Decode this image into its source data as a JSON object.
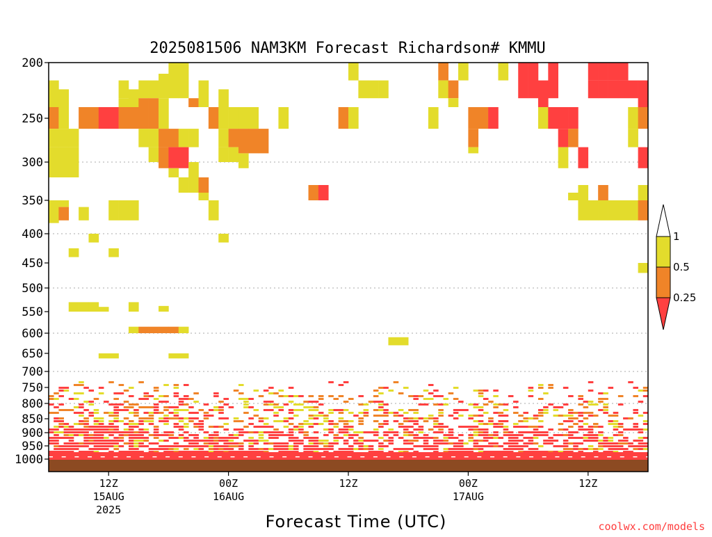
{
  "colors": {
    "yellow": "#e3dc2c",
    "orange": "#f08428",
    "red": "#ff4040",
    "ground": "#8c4a22",
    "grid": "#aaaaaa",
    "credit": "#ff3c3c"
  },
  "chart_data": {
    "type": "heatmap",
    "title": "2025081506 NAM3KM Forecast Richardson# KMMU",
    "xlabel": "Forecast Time (UTC)",
    "ylabel": "",
    "credit": "coolwx.com/models",
    "y_axis": {
      "scale": "pressure (hPa), inverted",
      "range": [
        1030,
        200
      ],
      "ticks": [
        200,
        250,
        300,
        350,
        400,
        450,
        500,
        550,
        600,
        650,
        700,
        750,
        800,
        850,
        900,
        950,
        1000
      ],
      "tick_labels": [
        "200",
        "250",
        "300",
        "350",
        "400",
        "450",
        "500",
        "550",
        "600",
        "650",
        "700",
        "750",
        "800",
        "850",
        "900",
        "950",
        "1000"
      ],
      "dotted_grid_at": [
        300,
        400,
        500,
        600,
        700,
        800,
        900,
        1000
      ]
    },
    "x_axis": {
      "range_hours": [
        0,
        60
      ],
      "ticks": [
        {
          "hour": 6,
          "label": "12Z",
          "date": "15AUG",
          "year": "2025"
        },
        {
          "hour": 18,
          "label": "00Z",
          "date": "16AUG",
          "year": ""
        },
        {
          "hour": 30,
          "label": "12Z",
          "date": "",
          "year": ""
        },
        {
          "hour": 42,
          "label": "00Z",
          "date": "17AUG",
          "year": ""
        },
        {
          "hour": 54,
          "label": "12Z",
          "date": "",
          "year": ""
        }
      ]
    },
    "colorbar": {
      "bins": [
        {
          "range": "< 0.25",
          "color": "#ff4040"
        },
        {
          "range": "0.25 - 0.5",
          "color": "#f08428"
        },
        {
          "range": "0.5 - 1",
          "color": "#e3dc2c"
        },
        {
          "range": "> 1",
          "color": "#ffffff"
        }
      ],
      "tick_labels": [
        "1",
        "0.5",
        "0.25"
      ]
    },
    "cells": [
      [
        0,
        1,
        216,
        240,
        "Y"
      ],
      [
        0,
        1,
        240,
        262,
        "O"
      ],
      [
        0,
        1,
        262,
        283,
        "Y"
      ],
      [
        0,
        1,
        283,
        320,
        "Y"
      ],
      [
        0,
        1,
        350,
        384,
        "Y"
      ],
      [
        1,
        2,
        224,
        240,
        "Y"
      ],
      [
        1,
        2,
        240,
        262,
        "Y"
      ],
      [
        1,
        2,
        262,
        283,
        "Y"
      ],
      [
        1,
        2,
        283,
        320,
        "Y"
      ],
      [
        1,
        2,
        350,
        360,
        "Y"
      ],
      [
        1,
        2,
        360,
        380,
        "O"
      ],
      [
        2,
        3,
        262,
        283,
        "Y"
      ],
      [
        2,
        3,
        283,
        320,
        "Y"
      ],
      [
        2,
        3,
        425,
        440,
        "Y"
      ],
      [
        2,
        3,
        530,
        550,
        "Y"
      ],
      [
        3,
        4,
        240,
        262,
        "O"
      ],
      [
        3,
        4,
        360,
        380,
        "Y"
      ],
      [
        3,
        4,
        530,
        550,
        "Y"
      ],
      [
        4,
        5,
        240,
        262,
        "O"
      ],
      [
        4,
        5,
        400,
        415,
        "Y"
      ],
      [
        4,
        5,
        530,
        550,
        "Y"
      ],
      [
        5,
        6,
        240,
        262,
        "R"
      ],
      [
        5,
        6,
        540,
        550,
        "Y"
      ],
      [
        5,
        6,
        650,
        664,
        "Y"
      ],
      [
        6,
        7,
        240,
        262,
        "R"
      ],
      [
        6,
        7,
        350,
        380,
        "Y"
      ],
      [
        6,
        7,
        650,
        664,
        "Y"
      ],
      [
        6,
        7,
        425,
        440,
        "Y"
      ],
      [
        7,
        8,
        216,
        232,
        "Y"
      ],
      [
        7,
        8,
        232,
        240,
        "Y"
      ],
      [
        7,
        8,
        240,
        262,
        "O"
      ],
      [
        7,
        8,
        350,
        380,
        "Y"
      ],
      [
        8,
        9,
        224,
        240,
        "Y"
      ],
      [
        8,
        9,
        240,
        262,
        "O"
      ],
      [
        8,
        9,
        350,
        380,
        "Y"
      ],
      [
        8,
        9,
        530,
        550,
        "Y"
      ],
      [
        8,
        9,
        585,
        600,
        "Y"
      ],
      [
        9,
        10,
        216,
        232,
        "Y"
      ],
      [
        9,
        10,
        232,
        262,
        "O"
      ],
      [
        9,
        10,
        262,
        283,
        "Y"
      ],
      [
        9,
        10,
        585,
        600,
        "O"
      ],
      [
        10,
        11,
        216,
        232,
        "Y"
      ],
      [
        10,
        11,
        232,
        262,
        "O"
      ],
      [
        10,
        11,
        262,
        283,
        "Y"
      ],
      [
        10,
        11,
        283,
        300,
        "Y"
      ],
      [
        10,
        11,
        585,
        600,
        "O"
      ],
      [
        11,
        12,
        210,
        232,
        "Y"
      ],
      [
        11,
        12,
        232,
        262,
        "Y"
      ],
      [
        11,
        12,
        262,
        283,
        "O"
      ],
      [
        11,
        12,
        283,
        308,
        "O"
      ],
      [
        11,
        12,
        538,
        550,
        "Y"
      ],
      [
        11,
        12,
        585,
        600,
        "O"
      ],
      [
        12,
        13,
        200,
        232,
        "Y"
      ],
      [
        12,
        13,
        262,
        283,
        "O"
      ],
      [
        12,
        13,
        283,
        308,
        "R"
      ],
      [
        12,
        13,
        308,
        320,
        "Y"
      ],
      [
        12,
        13,
        585,
        600,
        "O"
      ],
      [
        12,
        13,
        650,
        664,
        "Y"
      ],
      [
        13,
        14,
        200,
        232,
        "Y"
      ],
      [
        13,
        14,
        262,
        283,
        "Y"
      ],
      [
        13,
        14,
        283,
        308,
        "R"
      ],
      [
        13,
        14,
        320,
        340,
        "Y"
      ],
      [
        13,
        14,
        585,
        600,
        "Y"
      ],
      [
        13,
        14,
        650,
        664,
        "Y"
      ],
      [
        14,
        15,
        232,
        240,
        "O"
      ],
      [
        14,
        15,
        262,
        283,
        "Y"
      ],
      [
        14,
        15,
        300,
        320,
        "Y"
      ],
      [
        14,
        15,
        320,
        340,
        "Y"
      ],
      [
        15,
        16,
        216,
        240,
        "Y"
      ],
      [
        15,
        16,
        320,
        340,
        "O"
      ],
      [
        15,
        16,
        340,
        350,
        "Y"
      ],
      [
        16,
        17,
        240,
        262,
        "O"
      ],
      [
        16,
        17,
        350,
        380,
        "Y"
      ],
      [
        17,
        18,
        224,
        240,
        "Y"
      ],
      [
        17,
        18,
        240,
        262,
        "Y"
      ],
      [
        17,
        18,
        262,
        283,
        "Y"
      ],
      [
        17,
        18,
        283,
        300,
        "Y"
      ],
      [
        17,
        18,
        400,
        415,
        "Y"
      ],
      [
        18,
        19,
        240,
        262,
        "Y"
      ],
      [
        18,
        19,
        262,
        283,
        "O"
      ],
      [
        18,
        19,
        283,
        300,
        "Y"
      ],
      [
        19,
        20,
        240,
        262,
        "Y"
      ],
      [
        19,
        20,
        262,
        290,
        "O"
      ],
      [
        19,
        20,
        290,
        308,
        "Y"
      ],
      [
        20,
        21,
        240,
        262,
        "Y"
      ],
      [
        20,
        21,
        262,
        290,
        "O"
      ],
      [
        21,
        22,
        262,
        290,
        "O"
      ],
      [
        23,
        24,
        240,
        262,
        "Y"
      ],
      [
        26,
        27,
        330,
        350,
        "O"
      ],
      [
        27,
        28,
        330,
        350,
        "R"
      ],
      [
        29,
        30,
        240,
        262,
        "O"
      ],
      [
        30,
        31,
        200,
        216,
        "Y"
      ],
      [
        30,
        31,
        240,
        262,
        "Y"
      ],
      [
        31,
        32,
        216,
        232,
        "Y"
      ],
      [
        32,
        33,
        216,
        232,
        "Y"
      ],
      [
        33,
        34,
        216,
        232,
        "Y"
      ],
      [
        34,
        35,
        610,
        630,
        "Y"
      ],
      [
        35,
        36,
        610,
        630,
        "Y"
      ],
      [
        38,
        39,
        240,
        262,
        "Y"
      ],
      [
        39,
        40,
        200,
        216,
        "O"
      ],
      [
        39,
        40,
        216,
        232,
        "Y"
      ],
      [
        40,
        41,
        216,
        232,
        "O"
      ],
      [
        40,
        41,
        232,
        240,
        "Y"
      ],
      [
        41,
        42,
        200,
        216,
        "Y"
      ],
      [
        42,
        43,
        240,
        262,
        "O"
      ],
      [
        42,
        43,
        262,
        283,
        "O"
      ],
      [
        42,
        43,
        283,
        290,
        "Y"
      ],
      [
        43,
        44,
        240,
        262,
        "O"
      ],
      [
        44,
        45,
        240,
        262,
        "R"
      ],
      [
        45,
        46,
        200,
        216,
        "Y"
      ],
      [
        47,
        48,
        200,
        232,
        "R"
      ],
      [
        48,
        49,
        200,
        232,
        "R"
      ],
      [
        49,
        50,
        216,
        240,
        "R"
      ],
      [
        49,
        50,
        240,
        262,
        "Y"
      ],
      [
        50,
        51,
        200,
        232,
        "R"
      ],
      [
        50,
        51,
        240,
        262,
        "R"
      ],
      [
        51,
        52,
        240,
        262,
        "R"
      ],
      [
        51,
        52,
        262,
        283,
        "R"
      ],
      [
        51,
        52,
        283,
        308,
        "Y"
      ],
      [
        52,
        53,
        240,
        262,
        "R"
      ],
      [
        52,
        53,
        262,
        283,
        "O"
      ],
      [
        52,
        53,
        340,
        350,
        "Y"
      ],
      [
        53,
        54,
        283,
        308,
        "R"
      ],
      [
        53,
        54,
        330,
        350,
        "Y"
      ],
      [
        53,
        54,
        350,
        380,
        "Y"
      ],
      [
        54,
        55,
        200,
        216,
        "R"
      ],
      [
        54,
        55,
        216,
        232,
        "R"
      ],
      [
        54,
        55,
        350,
        380,
        "Y"
      ],
      [
        55,
        56,
        200,
        216,
        "R"
      ],
      [
        55,
        56,
        216,
        232,
        "R"
      ],
      [
        55,
        56,
        330,
        350,
        "O"
      ],
      [
        55,
        56,
        350,
        380,
        "Y"
      ],
      [
        56,
        57,
        200,
        216,
        "R"
      ],
      [
        56,
        57,
        216,
        232,
        "R"
      ],
      [
        56,
        57,
        350,
        380,
        "Y"
      ],
      [
        57,
        58,
        200,
        216,
        "R"
      ],
      [
        57,
        58,
        216,
        232,
        "R"
      ],
      [
        57,
        58,
        350,
        380,
        "Y"
      ],
      [
        58,
        59,
        216,
        232,
        "R"
      ],
      [
        58,
        59,
        240,
        262,
        "Y"
      ],
      [
        58,
        59,
        262,
        283,
        "Y"
      ],
      [
        58,
        59,
        350,
        380,
        "Y"
      ],
      [
        59,
        60,
        216,
        240,
        "R"
      ],
      [
        59,
        60,
        240,
        262,
        "O"
      ],
      [
        59,
        60,
        283,
        308,
        "R"
      ],
      [
        59,
        60,
        330,
        350,
        "Y"
      ],
      [
        59,
        60,
        350,
        380,
        "O"
      ],
      [
        59,
        60,
        450,
        470,
        "Y"
      ]
    ],
    "low_level": "Dense bands between ~750 and 1000 hPa: mostly red (< 0.25) near the surface with scattered orange and yellow layers up to ~800 hPa"
  }
}
